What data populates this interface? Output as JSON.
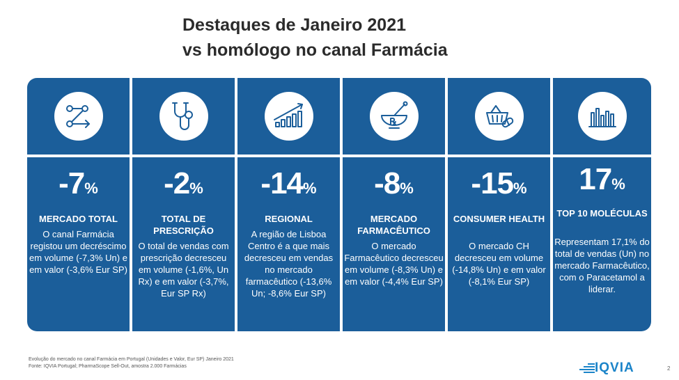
{
  "title": {
    "line1": "Destaques de Janeiro 2021",
    "line2": "vs homólogo no canal Farmácia"
  },
  "panel_color": "#1b5e9a",
  "columns": [
    {
      "icon": "network-arrow-icon",
      "value": "-7",
      "unit": "%",
      "head": "MERCADO TOTAL",
      "desc": "O canal Farmácia registou um decréscimo em volume (-7,3% Un) e em valor (-3,6% Eur SP)"
    },
    {
      "icon": "stethoscope-icon",
      "value": "-2",
      "unit": "%",
      "head": "TOTAL DE PRESCRIÇÃO",
      "desc": "O total de vendas com prescrição decresceu em volume (-1,6%, Un Rx) e em valor (-3,7%, Eur SP Rx)"
    },
    {
      "icon": "growth-chart-icon",
      "value": "-14",
      "unit": "%",
      "head": "REGIONAL",
      "desc": "A região de Lisboa Centro é a que mais decresceu em vendas no mercado farmacêutico (-13,6% Un; -8,6% Eur SP)"
    },
    {
      "icon": "mortar-pestle-rx-icon",
      "value": "-8",
      "unit": "%",
      "head": "MERCADO FARMACÊUTICO",
      "desc": "O mercado Farmacêutico decresceu em volume (-8,3% Un) e em valor (-4,4% Eur SP)"
    },
    {
      "icon": "basket-pill-icon",
      "value": "-15",
      "unit": "%",
      "head": "CONSUMER HEALTH",
      "desc": "O mercado CH decresceu em volume (-14,8% Un) e em valor (-8,1% Eur SP)"
    },
    {
      "icon": "bar-chart-icon",
      "value": "17",
      "unit": "%",
      "head": "TOP 10 MOLÉCULAS",
      "desc": "Representam 17,1% do total de vendas (Un) no mercado Farmacêutico, com o Paracetamol a liderar."
    }
  ],
  "footer": {
    "line1": "Evolução do mercado no canal Farmácia em Portugal (Unidades e Valor, Eur SP) Janeiro 2021",
    "line2": "Fonte: IQVIA Portugal; PharmaScope Sell-Out, amostra 2.000 Farmácias"
  },
  "logo": "IQVIA",
  "page_number": "2"
}
